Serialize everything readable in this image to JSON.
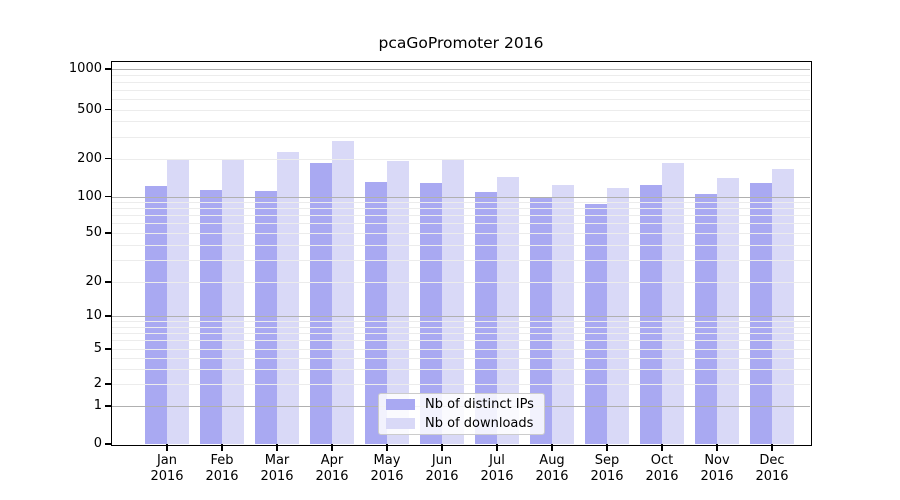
{
  "title": "pcaGoPromoter 2016",
  "colors": {
    "bar_ips": "#a9a9f2",
    "bar_downloads": "#d9d9f7",
    "grid_minor": "#ececec",
    "grid_major": "#b0b0b0",
    "frame": "#000000"
  },
  "legend": {
    "items": [
      {
        "label": "Nb of distinct IPs",
        "color": "#a9a9f2"
      },
      {
        "label": "Nb of downloads",
        "color": "#d9d9f7"
      }
    ]
  },
  "y_axis": {
    "ticks": [
      0,
      1,
      2,
      5,
      10,
      20,
      50,
      100,
      200,
      500,
      1000
    ]
  },
  "x_axis": {
    "months": [
      "Jan",
      "Feb",
      "Mar",
      "Apr",
      "May",
      "Jun",
      "Jul",
      "Aug",
      "Sep",
      "Oct",
      "Nov",
      "Dec"
    ],
    "year": "2016"
  },
  "chart_data": {
    "type": "bar",
    "title": "pcaGoPromoter 2016",
    "categories": [
      "Jan 2016",
      "Feb 2016",
      "Mar 2016",
      "Apr 2016",
      "May 2016",
      "Jun 2016",
      "Jul 2016",
      "Aug 2016",
      "Sep 2016",
      "Oct 2016",
      "Nov 2016",
      "Dec 2016"
    ],
    "series": [
      {
        "name": "Nb of distinct IPs",
        "values": [
          121,
          113,
          110,
          185,
          130,
          127,
          108,
          100,
          86,
          123,
          105,
          128
        ]
      },
      {
        "name": "Nb of downloads",
        "values": [
          200,
          196,
          225,
          280,
          190,
          198,
          143,
          123,
          116,
          185,
          141,
          165
        ]
      }
    ],
    "xlabel": "",
    "ylabel": "",
    "yscale": "symlog",
    "y_ticks": [
      0,
      1,
      2,
      5,
      10,
      20,
      50,
      100,
      200,
      500,
      1000
    ],
    "ylim": [
      0,
      1200
    ],
    "grid": true,
    "legend_position": "lower center"
  }
}
